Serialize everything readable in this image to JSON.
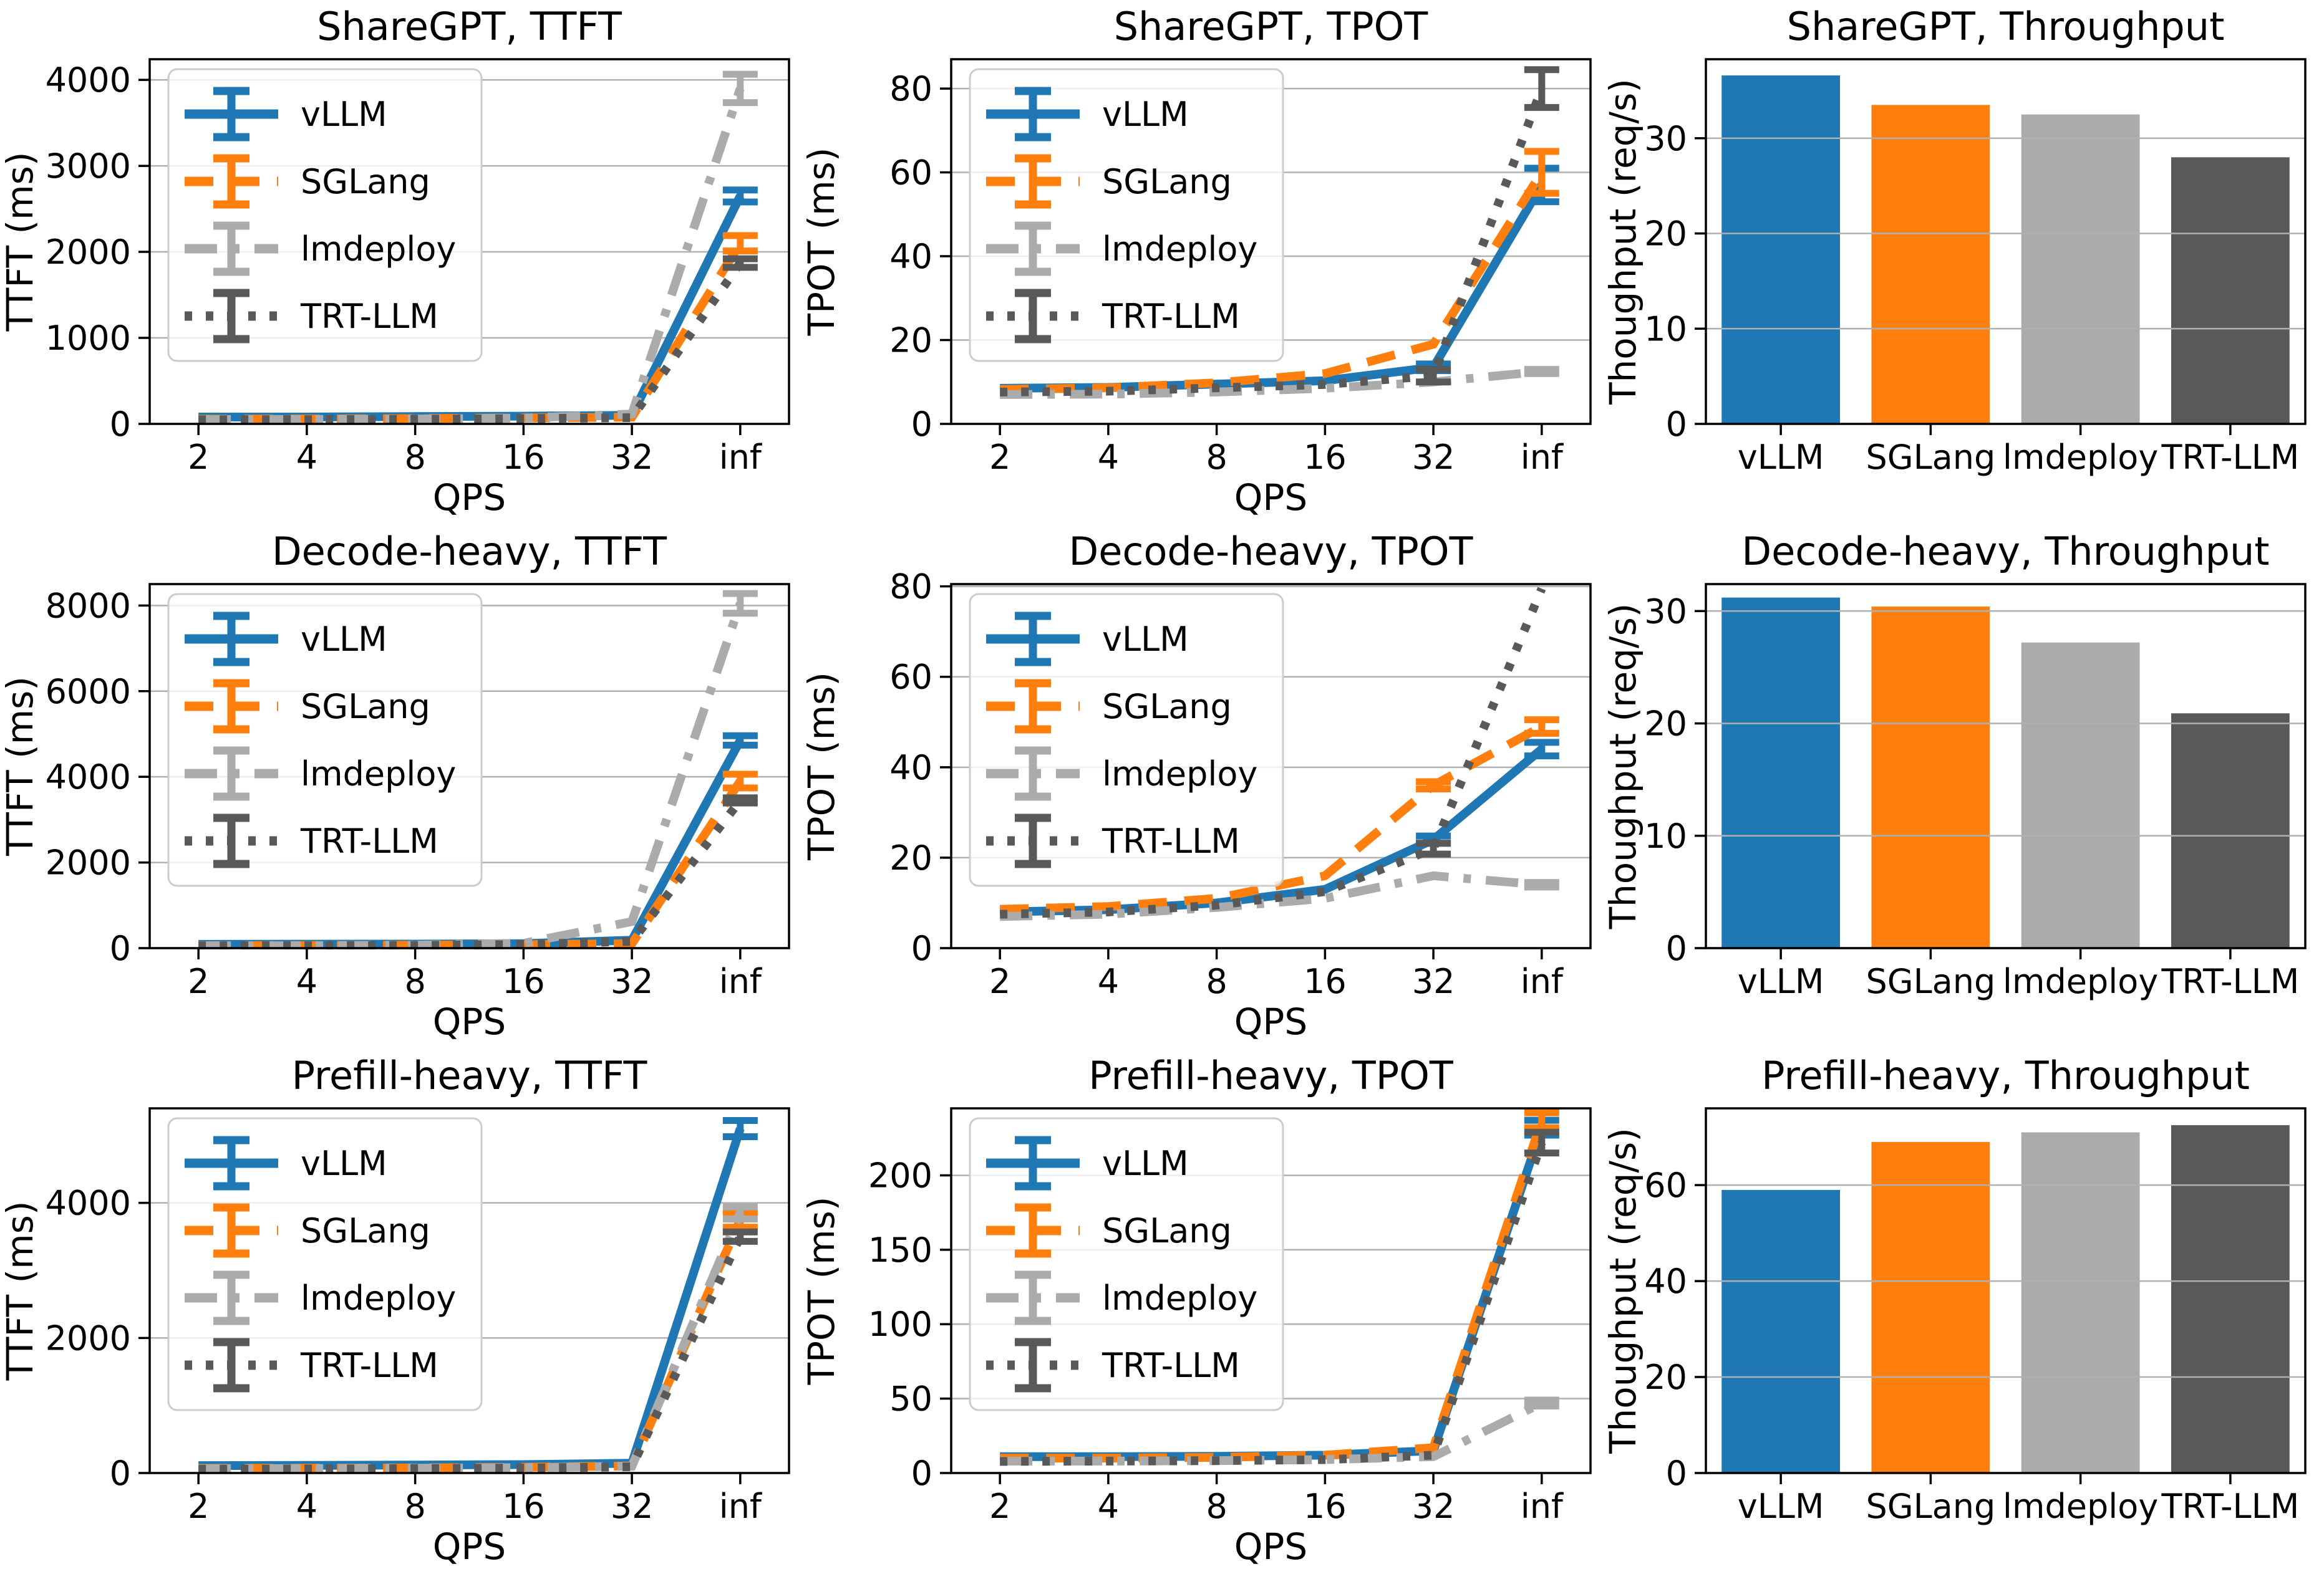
{
  "page": {
    "background": "#ffffff"
  },
  "colors": {
    "vLLM": "#1f77b4",
    "SGLang": "#ff7f0e",
    "lmdeploy": "#ababab",
    "TRT-LLM": "#595959",
    "grid": "#b0b0b0",
    "spine": "#000000",
    "legend_border": "#cccccc"
  },
  "frameworks": [
    "vLLM",
    "SGLang",
    "lmdeploy",
    "TRT-LLM"
  ],
  "line_styles": {
    "vLLM": "solid",
    "SGLang": "dashed",
    "lmdeploy": "dashdot",
    "TRT-LLM": "dotted"
  },
  "chart_data": [
    {
      "type": "line",
      "title": "ShareGPT, TTFT",
      "xlabel": "QPS",
      "ylabel": "TTFT (ms)",
      "x_values": [
        2,
        4,
        8,
        16,
        32,
        "inf"
      ],
      "x_ticklabels": [
        "2",
        "4",
        "8",
        "16",
        "32",
        "inf"
      ],
      "yticks": [
        0,
        1000,
        2000,
        3000,
        4000
      ],
      "ylim": [
        0,
        4240
      ],
      "legend": true,
      "legend_position": "upper-left",
      "series": [
        {
          "name": "vLLM",
          "values": [
            80,
            80,
            85,
            90,
            100,
            2650
          ],
          "yerr": [
            0,
            0,
            0,
            0,
            0,
            70
          ]
        },
        {
          "name": "SGLang",
          "values": [
            55,
            57,
            62,
            70,
            78,
            2100
          ],
          "yerr": [
            0,
            0,
            0,
            0,
            0,
            90
          ]
        },
        {
          "name": "lmdeploy",
          "values": [
            50,
            52,
            57,
            68,
            115,
            3900
          ],
          "yerr": [
            0,
            0,
            0,
            0,
            0,
            165
          ]
        },
        {
          "name": "TRT-LLM",
          "values": [
            48,
            50,
            55,
            62,
            72,
            1870
          ],
          "yerr": [
            0,
            0,
            0,
            0,
            0,
            50
          ]
        }
      ]
    },
    {
      "type": "line",
      "title": "ShareGPT, TPOT",
      "xlabel": "QPS",
      "ylabel": "TPOT (ms)",
      "x_values": [
        2,
        4,
        8,
        16,
        32,
        "inf"
      ],
      "x_ticklabels": [
        "2",
        "4",
        "8",
        "16",
        "32",
        "inf"
      ],
      "yticks": [
        0,
        20,
        40,
        60,
        80
      ],
      "ylim": [
        0,
        87
      ],
      "legend": true,
      "legend_position": "upper-left",
      "series": [
        {
          "name": "vLLM",
          "values": [
            8.5,
            8.7,
            9.5,
            10.3,
            13.5,
            57
          ],
          "yerr": [
            0,
            0,
            0,
            0,
            0.8,
            4
          ]
        },
        {
          "name": "SGLang",
          "values": [
            8.2,
            8.6,
            9.8,
            12,
            19,
            60
          ],
          "yerr": [
            0,
            0,
            0,
            0,
            0,
            5
          ]
        },
        {
          "name": "lmdeploy",
          "values": [
            7,
            7.1,
            7.6,
            8.5,
            10,
            12.5
          ],
          "yerr": [
            0,
            0,
            0,
            0,
            0,
            0.5
          ]
        },
        {
          "name": "TRT-LLM",
          "values": [
            7.6,
            7.8,
            8.6,
            9.4,
            11.5,
            80
          ],
          "yerr": [
            0,
            0,
            0,
            0,
            1.5,
            4.5
          ]
        }
      ]
    },
    {
      "type": "bar",
      "title": "ShareGPT, Throughput",
      "ylabel": "Thoughput (req/s)",
      "categories": [
        "vLLM",
        "SGLang",
        "lmdeploy",
        "TRT-LLM"
      ],
      "values": [
        36.6,
        33.5,
        32.5,
        28.0
      ],
      "yticks": [
        0,
        10,
        20,
        30
      ],
      "ylim": [
        0,
        38.3
      ]
    },
    {
      "type": "line",
      "title": "Decode-heavy, TTFT",
      "xlabel": "QPS",
      "ylabel": "TTFT (ms)",
      "x_values": [
        2,
        4,
        8,
        16,
        32,
        "inf"
      ],
      "x_ticklabels": [
        "2",
        "4",
        "8",
        "16",
        "32",
        "inf"
      ],
      "yticks": [
        0,
        2000,
        4000,
        6000,
        8000
      ],
      "ylim": [
        0,
        8500
      ],
      "legend": true,
      "legend_position": "upper-left",
      "series": [
        {
          "name": "vLLM",
          "values": [
            90,
            92,
            95,
            105,
            185,
            4850
          ],
          "yerr": [
            0,
            0,
            0,
            0,
            0,
            110
          ]
        },
        {
          "name": "SGLang",
          "values": [
            60,
            62,
            68,
            80,
            105,
            3900
          ],
          "yerr": [
            0,
            0,
            0,
            0,
            0,
            160
          ]
        },
        {
          "name": "lmdeploy",
          "values": [
            55,
            58,
            70,
            115,
            620,
            8050
          ],
          "yerr": [
            0,
            0,
            0,
            0,
            0,
            230
          ]
        },
        {
          "name": "TRT-LLM",
          "values": [
            55,
            57,
            63,
            85,
            160,
            3450
          ],
          "yerr": [
            0,
            0,
            0,
            0,
            0,
            60
          ]
        }
      ]
    },
    {
      "type": "line",
      "title": "Decode-heavy, TPOT",
      "xlabel": "QPS",
      "ylabel": "TPOT (ms)",
      "x_values": [
        2,
        4,
        8,
        16,
        32,
        "inf"
      ],
      "x_ticklabels": [
        "2",
        "4",
        "8",
        "16",
        "32",
        "inf"
      ],
      "yticks": [
        0,
        20,
        40,
        60,
        80
      ],
      "ylim": [
        0,
        80.5
      ],
      "legend": true,
      "legend_position": "upper-left",
      "series": [
        {
          "name": "vLLM",
          "values": [
            8,
            8.5,
            10,
            13,
            24,
            44
          ],
          "yerr": [
            0,
            0,
            0,
            0,
            0.8,
            1.5
          ]
        },
        {
          "name": "SGLang",
          "values": [
            8.6,
            9.2,
            11,
            16,
            36,
            49
          ],
          "yerr": [
            0,
            0,
            0,
            0,
            0.8,
            1.5
          ]
        },
        {
          "name": "lmdeploy",
          "values": [
            7,
            7.5,
            9,
            11,
            16,
            14
          ],
          "yerr": [
            0,
            0,
            0,
            0,
            0,
            0.5
          ]
        },
        {
          "name": "TRT-LLM",
          "values": [
            7.5,
            8,
            9.5,
            12.5,
            22,
            79.5
          ],
          "yerr": [
            0,
            0,
            0,
            0,
            1.2,
            0
          ]
        }
      ]
    },
    {
      "type": "bar",
      "title": "Decode-heavy, Throughput",
      "ylabel": "Thoughput (req/s)",
      "categories": [
        "vLLM",
        "SGLang",
        "lmdeploy",
        "TRT-LLM"
      ],
      "values": [
        31.2,
        30.4,
        27.2,
        20.9
      ],
      "yticks": [
        0,
        10,
        20,
        30
      ],
      "ylim": [
        0,
        32.4
      ]
    },
    {
      "type": "line",
      "title": "Prefill-heavy, TTFT",
      "xlabel": "QPS",
      "ylabel": "TTFT (ms)",
      "x_values": [
        2,
        4,
        8,
        16,
        32,
        "inf"
      ],
      "x_ticklabels": [
        "2",
        "4",
        "8",
        "16",
        "32",
        "inf"
      ],
      "yticks": [
        0,
        2000,
        4000
      ],
      "ylim": [
        0,
        5400
      ],
      "legend": true,
      "legend_position": "upper-left",
      "series": [
        {
          "name": "vLLM",
          "values": [
            110,
            113,
            118,
            125,
            145,
            5100
          ],
          "yerr": [
            0,
            0,
            0,
            0,
            0,
            120
          ]
        },
        {
          "name": "SGLang",
          "values": [
            70,
            72,
            76,
            85,
            105,
            3750
          ],
          "yerr": [
            0,
            0,
            0,
            0,
            0,
            110
          ]
        },
        {
          "name": "lmdeploy",
          "values": [
            65,
            67,
            72,
            80,
            100,
            3850
          ],
          "yerr": [
            0,
            0,
            0,
            0,
            0,
            90
          ]
        },
        {
          "name": "TRT-LLM",
          "values": [
            58,
            60,
            66,
            74,
            92,
            3500
          ],
          "yerr": [
            0,
            0,
            0,
            0,
            0,
            70
          ]
        }
      ]
    },
    {
      "type": "line",
      "title": "Prefill-heavy, TPOT",
      "xlabel": "QPS",
      "ylabel": "TPOT (ms)",
      "x_values": [
        2,
        4,
        8,
        16,
        32,
        "inf"
      ],
      "x_ticklabels": [
        "2",
        "4",
        "8",
        "16",
        "32",
        "inf"
      ],
      "yticks": [
        0,
        50,
        100,
        150,
        200
      ],
      "ylim": [
        0,
        245
      ],
      "legend": true,
      "legend_position": "upper-left",
      "series": [
        {
          "name": "vLLM",
          "values": [
            11,
            11,
            11.2,
            12,
            15,
            232
          ],
          "yerr": [
            0,
            0,
            0,
            0,
            0,
            5
          ]
        },
        {
          "name": "SGLang",
          "values": [
            10,
            10,
            10.5,
            12,
            17,
            237
          ],
          "yerr": [
            0,
            0,
            0,
            0,
            0,
            5
          ]
        },
        {
          "name": "lmdeploy",
          "values": [
            8,
            8,
            8.3,
            9,
            11,
            47
          ],
          "yerr": [
            0,
            0,
            0,
            0,
            0,
            2
          ]
        },
        {
          "name": "TRT-LLM",
          "values": [
            7.8,
            8,
            8.3,
            9,
            12,
            222
          ],
          "yerr": [
            0,
            0,
            0,
            0,
            0,
            7
          ]
        }
      ]
    },
    {
      "type": "bar",
      "title": "Prefill-heavy, Throughput",
      "ylabel": "Thoughput (req/s)",
      "categories": [
        "vLLM",
        "SGLang",
        "lmdeploy",
        "TRT-LLM"
      ],
      "values": [
        59,
        69,
        71,
        72.5
      ],
      "yticks": [
        0,
        20,
        40,
        60
      ],
      "ylim": [
        0,
        76
      ]
    }
  ]
}
